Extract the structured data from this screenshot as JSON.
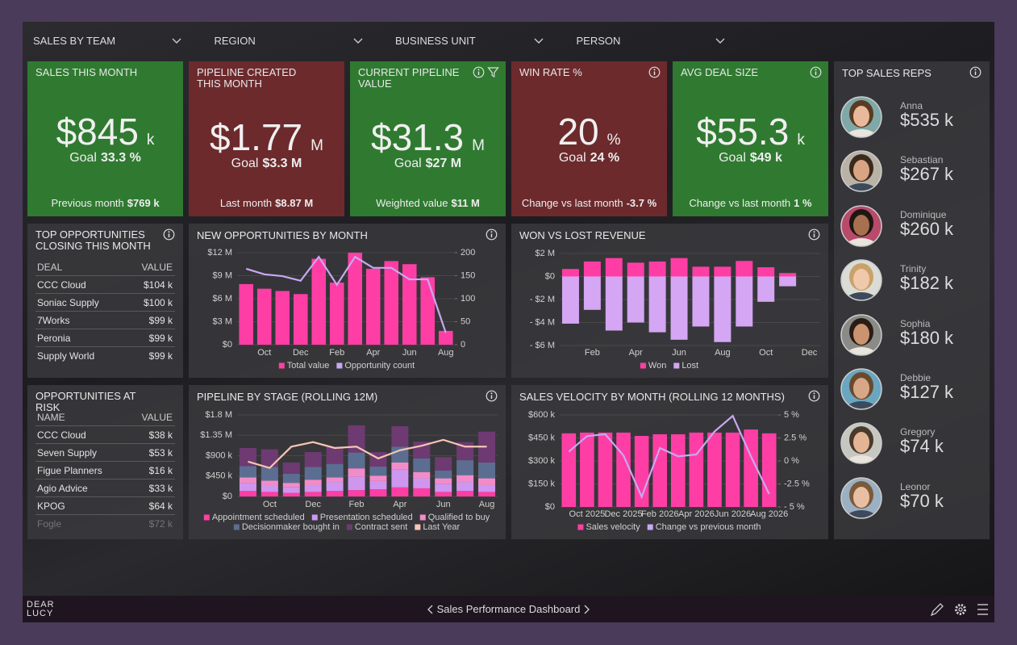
{
  "filters": [
    "SALES BY TEAM",
    "REGION",
    "BUSINESS UNIT",
    "PERSON"
  ],
  "kpis": [
    {
      "title": "SALES THIS MONTH",
      "value": "$845",
      "unit": "k",
      "goal_label": "Goal",
      "goal": "33.3 %",
      "footer_label": "Previous month",
      "footer": "$769 k",
      "color": "#2f7a30"
    },
    {
      "title": "PIPELINE CREATED THIS MONTH",
      "value": "$1.77",
      "unit": "M",
      "goal_label": "Goal",
      "goal": "$3.3 M",
      "footer_label": "Last month",
      "footer": "$8.87 M",
      "color": "#6c2a2d"
    },
    {
      "title": "CURRENT PIPELINE VALUE",
      "value": "$31.3",
      "unit": "M",
      "goal_label": "Goal",
      "goal": "$27 M",
      "footer_label": "Weighted value",
      "footer": "$11 M",
      "color": "#2f7a30"
    },
    {
      "title": "WIN RATE %",
      "value": "20",
      "unit": "%",
      "goal_label": "Goal",
      "goal": "24 %",
      "footer_label": "Change vs last month",
      "footer": "-3.7 %",
      "color": "#6c2a2d"
    },
    {
      "title": "AVG DEAL SIZE",
      "value": "$55.3",
      "unit": "k",
      "goal_label": "Goal",
      "goal": "$49 k",
      "footer_label": "Change vs last month",
      "footer": "1 %",
      "color": "#2f7a30"
    }
  ],
  "top_sales_reps": {
    "title": "TOP SALES REPS",
    "reps": [
      {
        "name": "Anna",
        "value": "$535 k"
      },
      {
        "name": "Sebastian",
        "value": "$267 k"
      },
      {
        "name": "Dominique",
        "value": "$260 k"
      },
      {
        "name": "Trinity",
        "value": "$182 k"
      },
      {
        "name": "Sophia",
        "value": "$180 k"
      },
      {
        "name": "Debbie",
        "value": "$127 k"
      },
      {
        "name": "Gregory",
        "value": "$74 k"
      },
      {
        "name": "Leonor",
        "value": "$70 k"
      }
    ]
  },
  "tables": [
    {
      "title": "TOP OPPORTUNITIES CLOSING THIS MONTH",
      "columns": [
        "DEAL",
        "VALUE"
      ],
      "rows": [
        [
          "CCC Cloud",
          "$104 k"
        ],
        [
          "Soniac Supply",
          "$100 k"
        ],
        [
          "7Works",
          "$99 k"
        ],
        [
          "Peronia",
          "$99 k"
        ],
        [
          "Supply World",
          "$99 k"
        ]
      ]
    },
    {
      "title": "OPPORTUNITIES AT RISK",
      "columns": [
        "NAME",
        "VALUE"
      ],
      "rows": [
        [
          "CCC Cloud",
          "$38 k"
        ],
        [
          "Seven Supply",
          "$53 k"
        ],
        [
          "Figue Planners",
          "$16 k"
        ],
        [
          "Agio Advice",
          "$33 k"
        ],
        [
          "KPOG",
          "$64 k"
        ],
        [
          "Fogle",
          "$72 k"
        ]
      ]
    }
  ],
  "charts": [
    {
      "type": "combo",
      "title": "NEW OPPORTUNITIES BY MONTH",
      "categories": [
        null,
        "Oct",
        null,
        "Dec",
        null,
        "Feb",
        null,
        "Apr",
        null,
        "Jun",
        null,
        "Aug"
      ],
      "series": [
        {
          "name": "Total value",
          "type": "bar",
          "color": "#ff3ea5",
          "values": [
            7.9,
            7.3,
            7.0,
            6.6,
            11.2,
            8.1,
            12.0,
            9.9,
            10.9,
            10.5,
            8.8,
            1.8
          ]
        },
        {
          "name": "Opportunity count",
          "type": "line",
          "axis": "y2",
          "color": "#c9a8f3",
          "values": [
            165,
            153,
            149,
            139,
            191,
            130,
            191,
            167,
            167,
            142,
            142,
            26
          ]
        }
      ],
      "ylim": [
        0,
        12
      ],
      "yticks": [
        {
          "value": 0,
          "label": "$0"
        },
        {
          "value": 3,
          "label": "$3 M"
        },
        {
          "value": 6,
          "label": "$6 M"
        },
        {
          "value": 9,
          "label": "$9 M"
        },
        {
          "value": 12,
          "label": "$12 M"
        }
      ],
      "y2lim": [
        0,
        200
      ],
      "y2ticks": [
        0,
        50,
        100,
        150,
        200
      ],
      "grid": true
    },
    {
      "type": "bar",
      "title": "WON VS LOST REVENUE",
      "stacked": true,
      "categories": [
        null,
        "Feb",
        null,
        "Apr",
        null,
        "Jun",
        null,
        "Aug",
        null,
        "Oct",
        null,
        "Dec"
      ],
      "series": [
        {
          "name": "Won",
          "type": "bar",
          "color": "#ff3ea5",
          "values": [
            0.65,
            1.3,
            1.6,
            1.2,
            1.3,
            1.6,
            0.85,
            0.85,
            1.35,
            0.8,
            0.3,
            null
          ]
        },
        {
          "name": "Lost",
          "type": "bar",
          "color": "#d4a6f3",
          "values": [
            -4.1,
            -2.9,
            -4.7,
            -4.0,
            -4.85,
            -5.5,
            -4.35,
            -5.7,
            -4.35,
            -2.2,
            -0.85,
            null
          ]
        }
      ],
      "ylim": [
        -6,
        2
      ],
      "yticks": [
        {
          "value": -6,
          "label": "- $6 M"
        },
        {
          "value": -4,
          "label": "- $4 M"
        },
        {
          "value": -2,
          "label": "- $2 M"
        },
        {
          "value": 0,
          "label": "$0"
        },
        {
          "value": 2,
          "label": "$2 M"
        }
      ],
      "grid": true
    },
    {
      "type": "combo",
      "title": "PIPELINE BY STAGE (ROLLING 12M)",
      "stacked": true,
      "categories": [
        null,
        "Oct",
        null,
        "Dec",
        null,
        "Feb",
        null,
        "Apr",
        null,
        "Jun",
        null,
        "Aug"
      ],
      "series": [
        {
          "name": "Appointment scheduled",
          "type": "bar",
          "color": "#ff3ea5",
          "values": [
            0.12,
            0.1,
            0.08,
            0.1,
            0.12,
            0.14,
            0.16,
            0.2,
            0.18,
            0.1,
            0.12,
            0.1
          ]
        },
        {
          "name": "Presentation scheduled",
          "type": "bar",
          "color": "#cf96ef",
          "values": [
            0.18,
            0.15,
            0.12,
            0.15,
            0.2,
            0.3,
            0.18,
            0.4,
            0.22,
            0.18,
            0.2,
            0.15
          ]
        },
        {
          "name": "Qualified to buy",
          "type": "bar",
          "color": "#f28cc8",
          "values": [
            0.12,
            0.1,
            0.1,
            0.12,
            0.1,
            0.18,
            0.12,
            0.15,
            0.14,
            0.12,
            0.15,
            0.15
          ]
        },
        {
          "name": "Decisionmaker bought in",
          "type": "bar",
          "color": "#5b6e92",
          "values": [
            0.25,
            0.3,
            0.2,
            0.28,
            0.3,
            0.35,
            0.2,
            0.35,
            0.3,
            0.17,
            0.33,
            0.35
          ]
        },
        {
          "name": "Contract sent",
          "type": "bar",
          "color": "#6e3a72",
          "values": [
            0.4,
            0.39,
            0.25,
            0.33,
            0.38,
            0.6,
            0.32,
            0.45,
            0.37,
            0.3,
            0.4,
            0.68
          ]
        },
        {
          "name": "Last Year",
          "type": "line",
          "color": "#f6c6b2",
          "values": [
            0.77,
            0.63,
            1.1,
            1.2,
            1.07,
            1.1,
            0.84,
            1.02,
            1.12,
            1.25,
            1.1,
            1.1
          ]
        }
      ],
      "ylim": [
        0,
        1.8
      ],
      "yticks": [
        {
          "value": 0,
          "label": "$0"
        },
        {
          "value": 0.45,
          "label": "$450 k"
        },
        {
          "value": 0.9,
          "label": "$900 k"
        },
        {
          "value": 1.35,
          "label": "$1.35 M"
        },
        {
          "value": 1.8,
          "label": "$1.8 M"
        }
      ],
      "grid": true
    },
    {
      "type": "combo",
      "title": "SALES VELOCITY BY MONTH (ROLLING 12 MONTHS)",
      "categories": [
        null,
        "Oct 2025",
        null,
        "Dec 2025",
        null,
        "Feb 2026",
        null,
        "Apr 2026",
        null,
        "Jun 2026",
        null,
        "Aug 2026"
      ],
      "series": [
        {
          "name": "Sales velocity",
          "type": "bar",
          "color": "#ff3ea5",
          "values": [
            480,
            485,
            485,
            485,
            463,
            474,
            474,
            485,
            485,
            485,
            505,
            480
          ]
        },
        {
          "name": "Change vs previous month",
          "type": "line",
          "axis": "y2",
          "color": "#c9a8f3",
          "values": [
            1.0,
            2.7,
            2.9,
            0.6,
            -3.9,
            1.4,
            0.5,
            0.7,
            3.2,
            4.9,
            0.5,
            -3.6
          ]
        }
      ],
      "ylim": [
        0,
        600
      ],
      "yticks": [
        {
          "value": 0,
          "label": "$0"
        },
        {
          "value": 150,
          "label": "$150 k"
        },
        {
          "value": 300,
          "label": "$300 k"
        },
        {
          "value": 450,
          "label": "$450 k"
        },
        {
          "value": 600,
          "label": "$600 k"
        }
      ],
      "y2lim": [
        -5,
        5
      ],
      "y2ticks": [
        {
          "value": -5,
          "label": "- 5 %"
        },
        {
          "value": -2.5,
          "label": "-2.5 %"
        },
        {
          "value": 0,
          "label": "0 %"
        },
        {
          "value": 2.5,
          "label": "2.5 %"
        },
        {
          "value": 5,
          "label": "5 %"
        }
      ],
      "grid": true
    }
  ],
  "footer": {
    "logo": "DEAR LUCY",
    "title": "Sales Performance Dashboard"
  }
}
